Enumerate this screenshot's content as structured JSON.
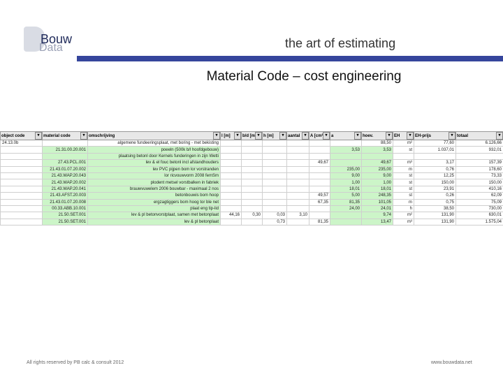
{
  "header": {
    "logo_top": "Bouw",
    "logo_bottom": "Data",
    "tagline": "the art of estimating"
  },
  "title": "Material Code – cost engineering",
  "table": {
    "columns": [
      "object code",
      "material code",
      "omschrijving",
      "l [m]",
      "b/d [m]",
      "h [m]",
      "aantal",
      "A [cm²]",
      "a",
      "hoev.",
      "EH",
      "EH-prijs",
      "totaal"
    ],
    "rows": [
      [
        "24.13.0b",
        null,
        "algemene fundeeringsplaat, met boring - met bekisting",
        null,
        null,
        null,
        null,
        null,
        null,
        "88,50",
        "m²",
        "77,60",
        "6.126,66"
      ],
      [
        null,
        "21.31.00.20.001",
        "poeeln (500k b/l hoofdgebouw)",
        null,
        null,
        null,
        null,
        null,
        "3,53",
        "3,53",
        "st",
        "1.037,01",
        "932,01"
      ],
      [
        null,
        null,
        "plaatsing betonl door Kernels funderingen in zijn Wetti",
        null,
        null,
        null,
        null,
        null,
        null,
        null,
        null,
        null,
        null
      ],
      [
        null,
        "27.43.PCL.001",
        "lev & el fouc betonl incl afstandhouders",
        null,
        null,
        null,
        null,
        "49,67",
        null,
        "49,67",
        "m³",
        "3,17",
        "157,39"
      ],
      [
        null,
        "21.43.01.07.20.002",
        "lev PVC pijpen bom lor vorstranden",
        null,
        null,
        null,
        null,
        null,
        "235,00",
        "235,00",
        "m",
        "0,76",
        "178,60"
      ],
      [
        null,
        "21.43.WAP.20.043",
        "lor ricvouwvorm 2008 femSm",
        null,
        null,
        null,
        null,
        null,
        "9,00",
        "9,00",
        "st",
        "12,25",
        "73,33"
      ],
      [
        null,
        "21.43.WAP.20.002",
        "plodent metsel vorstbalken in fabriek",
        null,
        null,
        null,
        null,
        null,
        "1,00",
        "1,00",
        "st",
        "150,00",
        "150,00"
      ],
      [
        null,
        "21.43.WAP.20.041",
        "brauwvuwelem 2006 bouwbar - maximaal 2 nos",
        null,
        null,
        null,
        null,
        null,
        "18,01",
        "18,01",
        "st",
        "23,91",
        "410,16"
      ],
      [
        null,
        "21.43.AFST.20.003",
        "betonbouwis bom hoop",
        null,
        null,
        null,
        null,
        "49,57",
        "5,00",
        "248,35",
        "st",
        "0,26",
        "62,09"
      ],
      [
        null,
        "21.43.01.07.20.008",
        "ergzagtiggers bom hoog tor ble net",
        null,
        null,
        null,
        null,
        "67,35",
        "81,35",
        "101,05",
        "m",
        "0,75",
        "75,09"
      ],
      [
        null,
        "00.33.ABB.10.001",
        "plaat eng tip-lid",
        null,
        null,
        null,
        null,
        null,
        "24,00",
        "24,01",
        "h",
        "38,50",
        "730,00"
      ],
      [
        null,
        "21.50.SET.001",
        "lev & pl betonvorstplaat, samen met betonplaat",
        "44,16",
        "0,30",
        "0,03",
        "3,10",
        null,
        null,
        "9,74",
        "m²",
        "131,90",
        "630,01"
      ],
      [
        null,
        "21.50.SET.001",
        "lev & pl betonplaat",
        null,
        null,
        "0,73",
        null,
        "81,35",
        null,
        "13,47",
        "m³",
        "131,90",
        "1.575,04"
      ]
    ]
  },
  "footer": {
    "left": "All rights reserved by PB calc & consult 2012",
    "right": "www.bouwdata.net"
  }
}
